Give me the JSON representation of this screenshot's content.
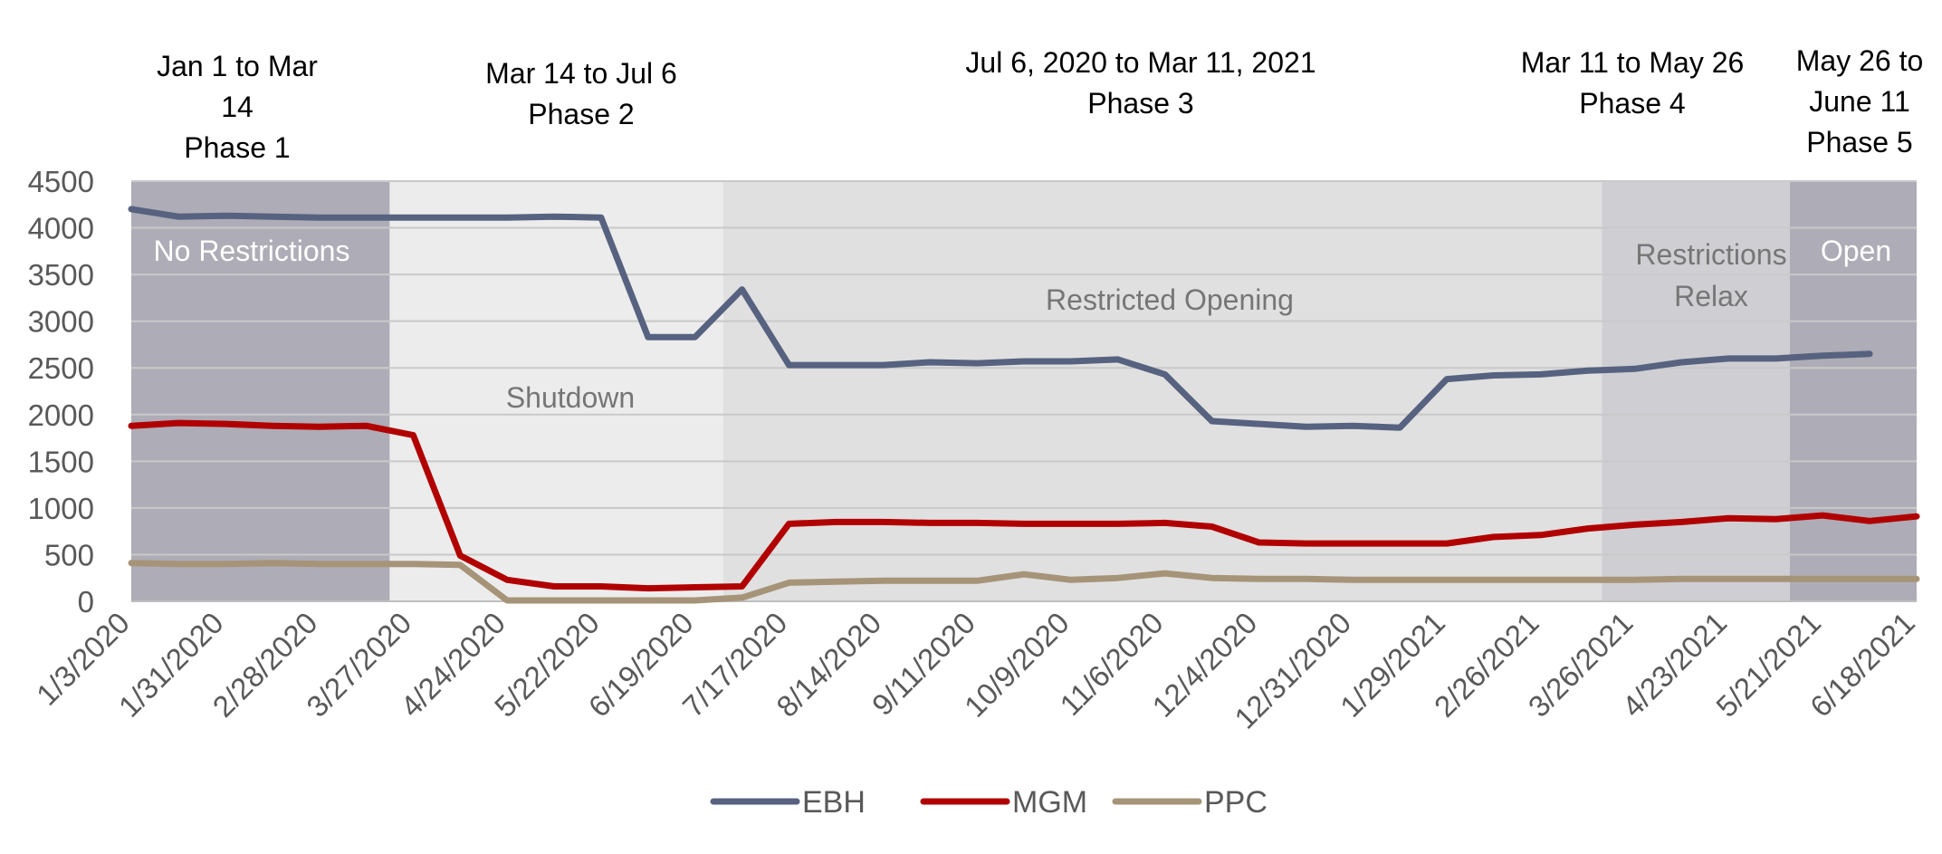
{
  "chart_data": {
    "type": "line",
    "ylim": [
      0,
      4500
    ],
    "yticks": [
      0,
      500,
      1000,
      1500,
      2000,
      2500,
      3000,
      3500,
      4000,
      4500
    ],
    "x": [
      "1/3/2020",
      "1/17/2020",
      "1/31/2020",
      "2/14/2020",
      "2/28/2020",
      "3/13/2020",
      "3/27/2020",
      "4/10/2020",
      "4/24/2020",
      "5/8/2020",
      "5/22/2020",
      "6/5/2020",
      "6/19/2020",
      "7/3/2020",
      "7/17/2020",
      "7/31/2020",
      "8/14/2020",
      "8/28/2020",
      "9/11/2020",
      "9/25/2020",
      "10/9/2020",
      "10/23/2020",
      "11/6/2020",
      "11/20/2020",
      "12/4/2020",
      "12/18/2020",
      "12/31/2020",
      "1/15/2021",
      "1/29/2021",
      "2/12/2021",
      "2/26/2021",
      "3/12/2021",
      "3/26/2021",
      "4/9/2021",
      "4/23/2021",
      "5/7/2021",
      "5/21/2021",
      "6/4/2021",
      "6/18/2021"
    ],
    "x_tick_labels": [
      "1/3/2020",
      "1/31/2020",
      "2/28/2020",
      "3/27/2020",
      "4/24/2020",
      "5/22/2020",
      "6/19/2020",
      "7/17/2020",
      "8/14/2020",
      "9/11/2020",
      "10/9/2020",
      "11/6/2020",
      "12/4/2020",
      "12/31/2020",
      "1/29/2021",
      "2/26/2021",
      "3/26/2021",
      "4/23/2021",
      "5/21/2021",
      "6/18/2021"
    ],
    "series": [
      {
        "name": "EBH",
        "color": "#56627f",
        "values": [
          4200,
          4120,
          4130,
          4120,
          4110,
          4110,
          4110,
          4110,
          4110,
          4120,
          4110,
          2830,
          2830,
          3340,
          2530,
          2530,
          2530,
          2560,
          2550,
          2570,
          2570,
          2590,
          2430,
          1930,
          1900,
          1870,
          1880,
          1860,
          2380,
          2420,
          2430,
          2470,
          2490,
          2560,
          2600,
          2600,
          2630,
          2650,
          null
        ]
      },
      {
        "name": "MGM",
        "color": "#b10000",
        "values": [
          1880,
          1910,
          1900,
          1880,
          1870,
          1880,
          1780,
          490,
          230,
          160,
          160,
          140,
          150,
          160,
          830,
          850,
          850,
          840,
          840,
          830,
          830,
          830,
          840,
          800,
          630,
          620,
          620,
          620,
          620,
          690,
          710,
          780,
          820,
          850,
          890,
          880,
          920,
          860,
          910
        ]
      },
      {
        "name": "PPC",
        "color": "#a69479",
        "values": [
          410,
          400,
          400,
          410,
          400,
          400,
          400,
          390,
          10,
          10,
          10,
          10,
          10,
          40,
          200,
          210,
          220,
          220,
          220,
          290,
          230,
          250,
          300,
          250,
          240,
          240,
          230,
          230,
          230,
          230,
          230,
          230,
          230,
          240,
          240,
          240,
          240,
          240,
          240
        ]
      }
    ],
    "regions": [
      {
        "start": 0,
        "end": 5.5,
        "fill": "#aeacb6",
        "label": "No Restrictions",
        "label_color": "#ffffff"
      },
      {
        "start": 5.5,
        "end": 12.6,
        "fill": "#ececec",
        "label": "Shutdown",
        "label_color": "#767676"
      },
      {
        "start": 12.6,
        "end": 31.3,
        "fill": "#e0e0e0",
        "label": "Restricted Opening",
        "label_color": "#767676"
      },
      {
        "start": 31.3,
        "end": 35.3,
        "fill": "#cfced3",
        "label": "Restrictions Relax",
        "label_color": "#767676"
      },
      {
        "start": 35.3,
        "end": 38,
        "fill": "#aeacb6",
        "label": "Open",
        "label_color": "#ffffff"
      }
    ],
    "phase_annotations": [
      {
        "text": "Jan 1 to Mar 14 Phase 1"
      },
      {
        "text": "Mar 14 to Jul 6 Phase 2"
      },
      {
        "text": "Jul 6, 2020 to Mar 11, 2021 Phase 3"
      },
      {
        "text": "Mar 11 to May 26 Phase 4"
      },
      {
        "text": "May 26 to June 11 Phase 5"
      }
    ],
    "gridlines": true,
    "legend_position": "bottom"
  }
}
